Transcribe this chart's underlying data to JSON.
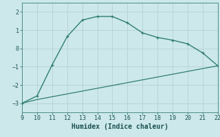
{
  "xlabel": "Humidex (Indice chaleur)",
  "xlim": [
    9,
    22
  ],
  "ylim": [
    -3.5,
    2.5
  ],
  "xticks": [
    9,
    10,
    11,
    12,
    13,
    14,
    15,
    16,
    17,
    18,
    19,
    20,
    21,
    22
  ],
  "yticks": [
    -3,
    -2,
    -1,
    0,
    1,
    2
  ],
  "line1_x": [
    9,
    10,
    11,
    12,
    13,
    14,
    15,
    16,
    17,
    18,
    19,
    20,
    21,
    22
  ],
  "line1_y": [
    -3.0,
    -2.6,
    -0.9,
    0.65,
    1.55,
    1.75,
    1.75,
    1.4,
    0.85,
    0.6,
    0.45,
    0.25,
    -0.25,
    -0.95
  ],
  "line2_x": [
    9,
    10,
    22
  ],
  "line2_y": [
    -3.0,
    -2.8,
    -0.95
  ],
  "line_color": "#2e7d6e",
  "bg_color": "#cce8ea",
  "grid_color": "#b8d4d6",
  "tick_fontsize": 6,
  "xlabel_fontsize": 7
}
